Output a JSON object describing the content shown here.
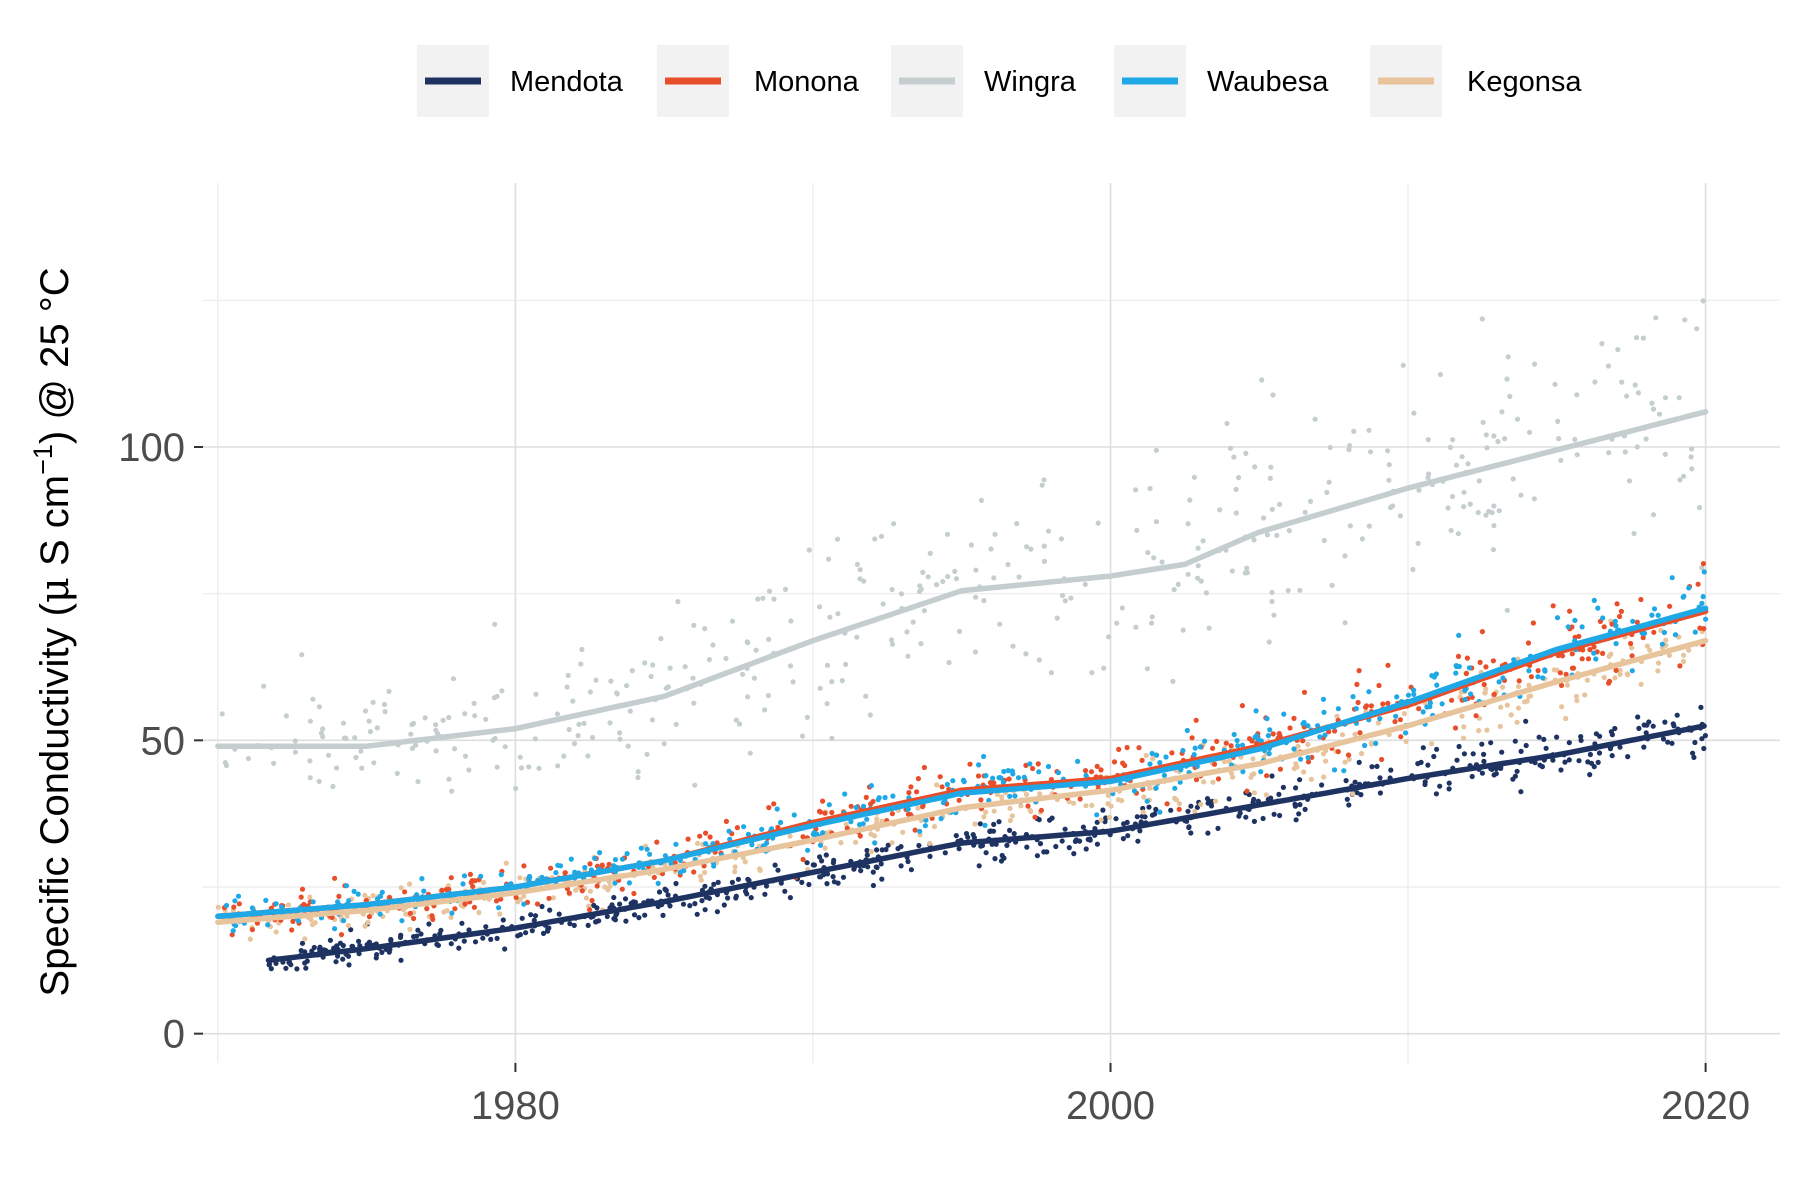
{
  "chart_data": {
    "type": "scatter",
    "ylabel": {
      "main": "Specific Conductivity (",
      "mu": "μ",
      "unit": " S cm",
      "exp": "−1",
      "close": ") @ 25 °C"
    },
    "xlim": [
      1969.5,
      2022.5
    ],
    "ylim": [
      -5,
      145
    ],
    "x_ticks": [
      {
        "value": 1980,
        "label": "1980"
      },
      {
        "value": 2000,
        "label": "2000"
      },
      {
        "value": 2020,
        "label": "2020"
      }
    ],
    "x_minor": [
      1970,
      1990,
      2010
    ],
    "y_ticks": [
      {
        "value": 0,
        "label": "0"
      },
      {
        "value": 50,
        "label": "50"
      },
      {
        "value": 100,
        "label": "100"
      }
    ],
    "y_minor": [
      25,
      75,
      125
    ],
    "grid": true,
    "legend_position": "top",
    "series": [
      {
        "name": "Mendota",
        "color": "#1f3363",
        "seed": 11,
        "noise": 1.8,
        "n": 560,
        "x_start": 1971.7,
        "x_end": 2020.0,
        "trend": [
          [
            1971.7,
            12.5
          ],
          [
            1975,
            14.5
          ],
          [
            1980,
            18
          ],
          [
            1985,
            22.5
          ],
          [
            1990,
            27.5
          ],
          [
            1995,
            32.5
          ],
          [
            2000,
            34.5
          ],
          [
            2005,
            39
          ],
          [
            2010,
            43.5
          ],
          [
            2015,
            47.5
          ],
          [
            2020,
            52.5
          ]
        ]
      },
      {
        "name": "Monona",
        "color": "#e94e2b",
        "seed": 23,
        "noise": 2.6,
        "n": 420,
        "x_start": 1970.0,
        "x_end": 2020.0,
        "trend": [
          [
            1970,
            20
          ],
          [
            1975,
            22
          ],
          [
            1980,
            25
          ],
          [
            1985,
            29.5
          ],
          [
            1990,
            36
          ],
          [
            1995,
            41.5
          ],
          [
            2000,
            43.5
          ],
          [
            2005,
            49
          ],
          [
            2010,
            56
          ],
          [
            2015,
            65
          ],
          [
            2020,
            72
          ]
        ]
      },
      {
        "name": "Wingra",
        "color": "#c5cecf",
        "seed": 37,
        "noise": 8,
        "n": 430,
        "x_start": 1970.0,
        "x_end": 2020.0,
        "trend": [
          [
            1970,
            49
          ],
          [
            1975,
            49
          ],
          [
            1980,
            52
          ],
          [
            1985,
            57.5
          ],
          [
            1990,
            67
          ],
          [
            1995,
            75.5
          ],
          [
            2000,
            78
          ],
          [
            2002.5,
            80
          ],
          [
            2005,
            85.5
          ],
          [
            2010,
            93
          ],
          [
            2015,
            99.5
          ],
          [
            2020,
            106
          ]
        ]
      },
      {
        "name": "Waubesa",
        "color": "#1ea8e6",
        "seed": 53,
        "noise": 2.4,
        "n": 420,
        "x_start": 1970.0,
        "x_end": 2020.0,
        "trend": [
          [
            1970,
            20
          ],
          [
            1975,
            22
          ],
          [
            1980,
            25
          ],
          [
            1985,
            29.5
          ],
          [
            1990,
            35.5
          ],
          [
            1995,
            41
          ],
          [
            2000,
            43
          ],
          [
            2005,
            48.5
          ],
          [
            2010,
            56.5
          ],
          [
            2015,
            65.5
          ],
          [
            2020,
            72.5
          ]
        ]
      },
      {
        "name": "Kegonsa",
        "color": "#e8c49c",
        "seed": 71,
        "noise": 2.4,
        "n": 420,
        "x_start": 1970.0,
        "x_end": 2020.0,
        "trend": [
          [
            1970,
            19
          ],
          [
            1975,
            21
          ],
          [
            1980,
            24
          ],
          [
            1985,
            28
          ],
          [
            1990,
            33
          ],
          [
            1995,
            38.5
          ],
          [
            2000,
            41.5
          ],
          [
            2005,
            46
          ],
          [
            2010,
            52.5
          ],
          [
            2015,
            60
          ],
          [
            2020,
            67
          ]
        ]
      }
    ]
  }
}
